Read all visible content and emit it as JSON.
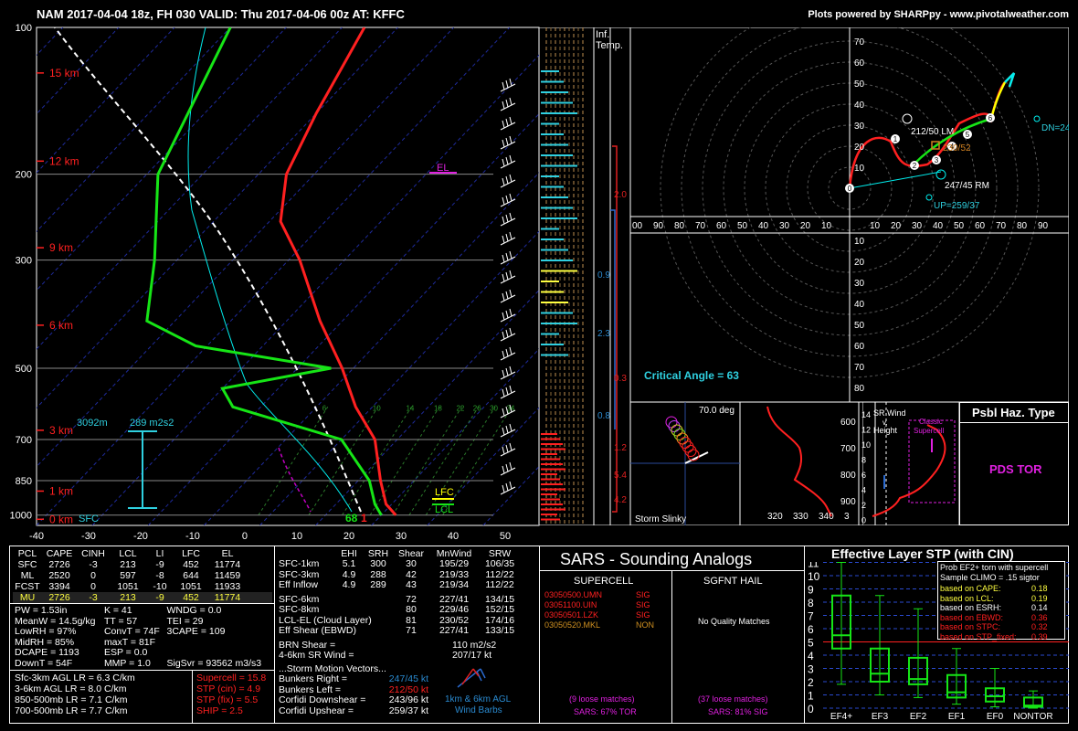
{
  "header": {
    "title": "NAM 2017-04-04 18z, FH 030   VALID: Thu 2017-04-06 00z   AT: KFFC",
    "credit": "Plots powered by SHARPpy - www.pivotalweather.com"
  },
  "skewt": {
    "pressure_labels": [
      "100",
      "200",
      "300",
      "500",
      "700",
      "850",
      "1000"
    ],
    "height_labels": [
      "15 km",
      "12 km",
      "9 km",
      "6 km",
      "3 km",
      "1 km",
      "0 km"
    ],
    "temp_labels": [
      "-40",
      "-30",
      "-20",
      "-10",
      "0",
      "10",
      "20",
      "30",
      "40",
      "50"
    ],
    "mixing_ratio_labels": [
      "6",
      "10",
      "14",
      "18",
      "22",
      "26",
      "30",
      "34"
    ],
    "annotations": {
      "el": "EL",
      "lfc": "LFC",
      "lcl": "LCL",
      "sfc": "SFC",
      "srh_depth": "3092m",
      "srh_value": "289 m2s2",
      "sfc_temp": "1",
      "sfc_dew": "68"
    },
    "colors": {
      "temp": "#ff1a1a",
      "dewpoint": "#16e516",
      "parcel": "#ffffff",
      "wetbulb": "#00e5e5",
      "height": "#ff2020",
      "srh": "#2fd0e0"
    }
  },
  "chart_data": {
    "type": "skew-t",
    "title": "NAM 2017-04-04 18z, FH 030   VALID: Thu 2017-04-06 00z   AT: KFFC",
    "ylabel": "",
    "xlabel": "",
    "pressure_ticks_hpa": [
      100,
      200,
      300,
      500,
      700,
      850,
      1000
    ],
    "temp_range_c": [
      -40,
      50
    ],
    "temperature_profile": [
      {
        "p": 1000,
        "t": 22.6
      },
      {
        "p": 950,
        "t": 19
      },
      {
        "p": 850,
        "t": 14
      },
      {
        "p": 700,
        "t": 6
      },
      {
        "p": 600,
        "t": -3
      },
      {
        "p": 500,
        "t": -12
      },
      {
        "p": 400,
        "t": -24
      },
      {
        "p": 300,
        "t": -38
      },
      {
        "p": 250,
        "t": -48
      },
      {
        "p": 200,
        "t": -55
      },
      {
        "p": 150,
        "t": -60
      },
      {
        "p": 100,
        "t": -66
      }
    ],
    "dewpoint_profile": [
      {
        "p": 1000,
        "t": 20
      },
      {
        "p": 950,
        "t": 17
      },
      {
        "p": 850,
        "t": 12
      },
      {
        "p": 700,
        "t": 0
      },
      {
        "p": 600,
        "t": -25
      },
      {
        "p": 550,
        "t": -30
      },
      {
        "p": 500,
        "t": -14
      },
      {
        "p": 450,
        "t": -42
      },
      {
        "p": 400,
        "t": -55
      },
      {
        "p": 300,
        "t": -64
      },
      {
        "p": 200,
        "t": -78
      },
      {
        "p": 100,
        "t": -90
      }
    ]
  },
  "profile_strip": {
    "labels": [
      "Inf.",
      "Temp."
    ],
    "values": [
      "2.0",
      "0.9",
      "2.3",
      "0.3",
      "0.8",
      "1.2",
      "5.4",
      "4.2"
    ]
  },
  "hodograph": {
    "ring_labels": [
      "80",
      "70",
      "60",
      "50",
      "40",
      "30",
      "20",
      "10"
    ],
    "x_labels": [
      "10",
      "20",
      "30",
      "40",
      "50",
      "60",
      "70",
      "80",
      "90"
    ],
    "x_left_labels": [
      "00",
      "90",
      "80",
      "70",
      "60",
      "50",
      "40",
      "30",
      "20",
      "10"
    ],
    "annotations": {
      "lm": "212/50 LM",
      "rm": "247/45 RM",
      "mean": "230/52",
      "up": "UP=259/37",
      "dn": "DN=24",
      "critical_angle": "Critical Angle = 63"
    },
    "points": [
      "0",
      "1",
      "2",
      "3",
      "4",
      "5",
      "6"
    ]
  },
  "slinky": {
    "title": "Storm Slinky",
    "angle": "70.0 deg"
  },
  "theta_panel": {
    "y_labels": [
      "600",
      "700",
      "800",
      "900"
    ],
    "x_labels": [
      "320",
      "330",
      "340",
      "3"
    ]
  },
  "sr_wind": {
    "title": "SR Wind",
    "sub1": "v.",
    "sub2": "Height",
    "classic": "Classic",
    "supercell": "Supercell",
    "y_labels": [
      "14",
      "12",
      "10",
      "8",
      "6",
      "4",
      "2",
      "0"
    ]
  },
  "hazard": {
    "title": "Psbl Haz. Type",
    "value": "PDS TOR"
  },
  "parcels": {
    "headers": [
      "PCL",
      "CAPE",
      "CINH",
      "LCL",
      "LI",
      "LFC",
      "EL"
    ],
    "rows": [
      [
        "SFC",
        "2726",
        "-3",
        "213",
        "-9",
        "452",
        "11774"
      ],
      [
        "ML",
        "2520",
        "0",
        "597",
        "-8",
        "644",
        "11459"
      ],
      [
        "FCST",
        "3394",
        "0",
        "1051",
        "-10",
        "1051",
        "11933"
      ],
      [
        "MU",
        "2726",
        "-3",
        "213",
        "-9",
        "452",
        "11774"
      ]
    ]
  },
  "indices": [
    [
      "PW = 1.53in",
      "K = 41",
      "WNDG = 0.0"
    ],
    [
      "MeanW = 14.5g/kg",
      "TT = 57",
      "TEI = 29"
    ],
    [
      "LowRH = 97%",
      "ConvT = 74F",
      "3CAPE = 109"
    ],
    [
      "MidRH = 85%",
      "maxT = 81F",
      ""
    ],
    [
      "DCAPE = 1193",
      "ESP = 0.0",
      ""
    ],
    [
      "DownT = 54F",
      "MMP = 1.0",
      "SigSvr = 93562 m3/s3"
    ]
  ],
  "lapse_rates": [
    "Sfc-3km AGL LR = 6.3 C/km",
    "3-6km AGL LR = 8.0 C/km",
    "850-500mb LR = 7.1 C/km",
    "700-500mb LR = 7.7 C/km"
  ],
  "composites": [
    "Supercell = 15.8",
    "STP (cin) = 4.9",
    "STP (fix) = 5.5",
    "SHIP = 2.5"
  ],
  "kinematics": {
    "headers": [
      "EHI",
      "SRH",
      "Shear",
      "MnWind",
      "SRW"
    ],
    "rows": [
      [
        "SFC-1km",
        "5.1",
        "300",
        "30",
        "195/29",
        "106/35"
      ],
      [
        "SFC-3km",
        "4.9",
        "288",
        "42",
        "219/33",
        "112/22"
      ],
      [
        "Eff Inflow",
        "4.9",
        "289",
        "43",
        "219/34",
        "112/22"
      ],
      [
        "SFC-6km",
        "",
        "",
        "72",
        "227/41",
        "134/15"
      ],
      [
        "SFC-8km",
        "",
        "",
        "80",
        "229/46",
        "152/15"
      ],
      [
        "LCL-EL (Cloud Layer)",
        "",
        "",
        "81",
        "230/52",
        "174/16"
      ],
      [
        "Eff Shear (EBWD)",
        "",
        "",
        "71",
        "227/41",
        "133/15"
      ]
    ],
    "brn": [
      "BRN Shear =",
      "110 m2/s2"
    ],
    "srwind": [
      "4-6km SR Wind =",
      "207/17 kt"
    ],
    "storm_motion_title": "...Storm Motion Vectors...",
    "motions": [
      [
        "Bunkers Right =",
        "247/45 kt"
      ],
      [
        "Bunkers Left =",
        "212/50 kt"
      ],
      [
        "Corfidi Downshear =",
        "243/96 kt"
      ],
      [
        "Corfidi Upshear =",
        "259/37 kt"
      ]
    ],
    "barb_label1": "1km & 6km AGL",
    "barb_label2": "Wind Barbs"
  },
  "sars": {
    "title": "SARS - Sounding Analogs",
    "supercell_title": "SUPERCELL",
    "hail_title": "SGFNT HAIL",
    "matches": [
      [
        "03050500.UMN",
        "SIG"
      ],
      [
        "03051100.UIN",
        "SIG"
      ],
      [
        "03050501.LZK",
        "SIG"
      ],
      [
        "03050520.MKL",
        "NON"
      ]
    ],
    "hail_text": "No Quality Matches",
    "supercell_loose": "(9 loose matches)",
    "supercell_pct": "SARS: 67% TOR",
    "hail_loose": "(37 loose matches)",
    "hail_pct": "SARS: 81% SIG"
  },
  "stp": {
    "title": "Effective Layer STP (with CIN)",
    "legend_title1": "Prob EF2+ torn with supercell",
    "legend_title2": "Sample CLIMO = .15 sigtor",
    "legend": [
      [
        "based on CAPE:",
        "0.18"
      ],
      [
        "based on LCL:",
        "0.19"
      ],
      [
        "based on ESRH:",
        "0.14"
      ],
      [
        "based on EBWD:",
        "0.36"
      ],
      [
        "based on STPC:",
        "0.32"
      ],
      [
        "based on STP_fixed:",
        "0.39"
      ]
    ],
    "y_labels": [
      "11",
      "10",
      "9",
      "8",
      "7",
      "6",
      "5",
      "4",
      "3",
      "2",
      "1",
      "0"
    ],
    "categories": [
      "EF4+",
      "EF3",
      "EF2",
      "EF1",
      "EF0",
      "NONTOR"
    ]
  }
}
